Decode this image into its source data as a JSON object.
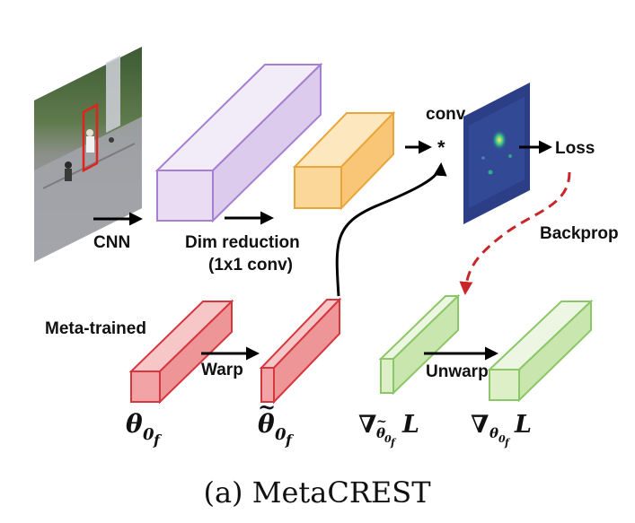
{
  "labels": {
    "cnn": "CNN",
    "dim_reduction": "Dim reduction",
    "dim_reduction_sub": "(1x1 conv)",
    "conv": "conv",
    "conv_op": "*",
    "loss": "Loss",
    "backprop": "Backprop",
    "meta_trained": "Meta-trained",
    "warp": "Warp",
    "unwarp": "Unwarp"
  },
  "math": {
    "theta": "θ",
    "nabla": "∇",
    "sub0": "0",
    "subf": "f",
    "tilde": "~",
    "loss_L": "L"
  },
  "caption": "(a) MetaCREST",
  "colors": {
    "purple_fill": "#e9dcf3",
    "purple_stroke": "#a57fd1",
    "orange_fill": "#fcd79a",
    "orange_stroke": "#e9a53a",
    "red_fill": "#f1a3a5",
    "red_stroke": "#d6373f",
    "green_fill": "#dcefc7",
    "green_stroke": "#8cc767",
    "backprop_arrow": "#c8262a",
    "heatmap_bg": "#2c3f86"
  }
}
